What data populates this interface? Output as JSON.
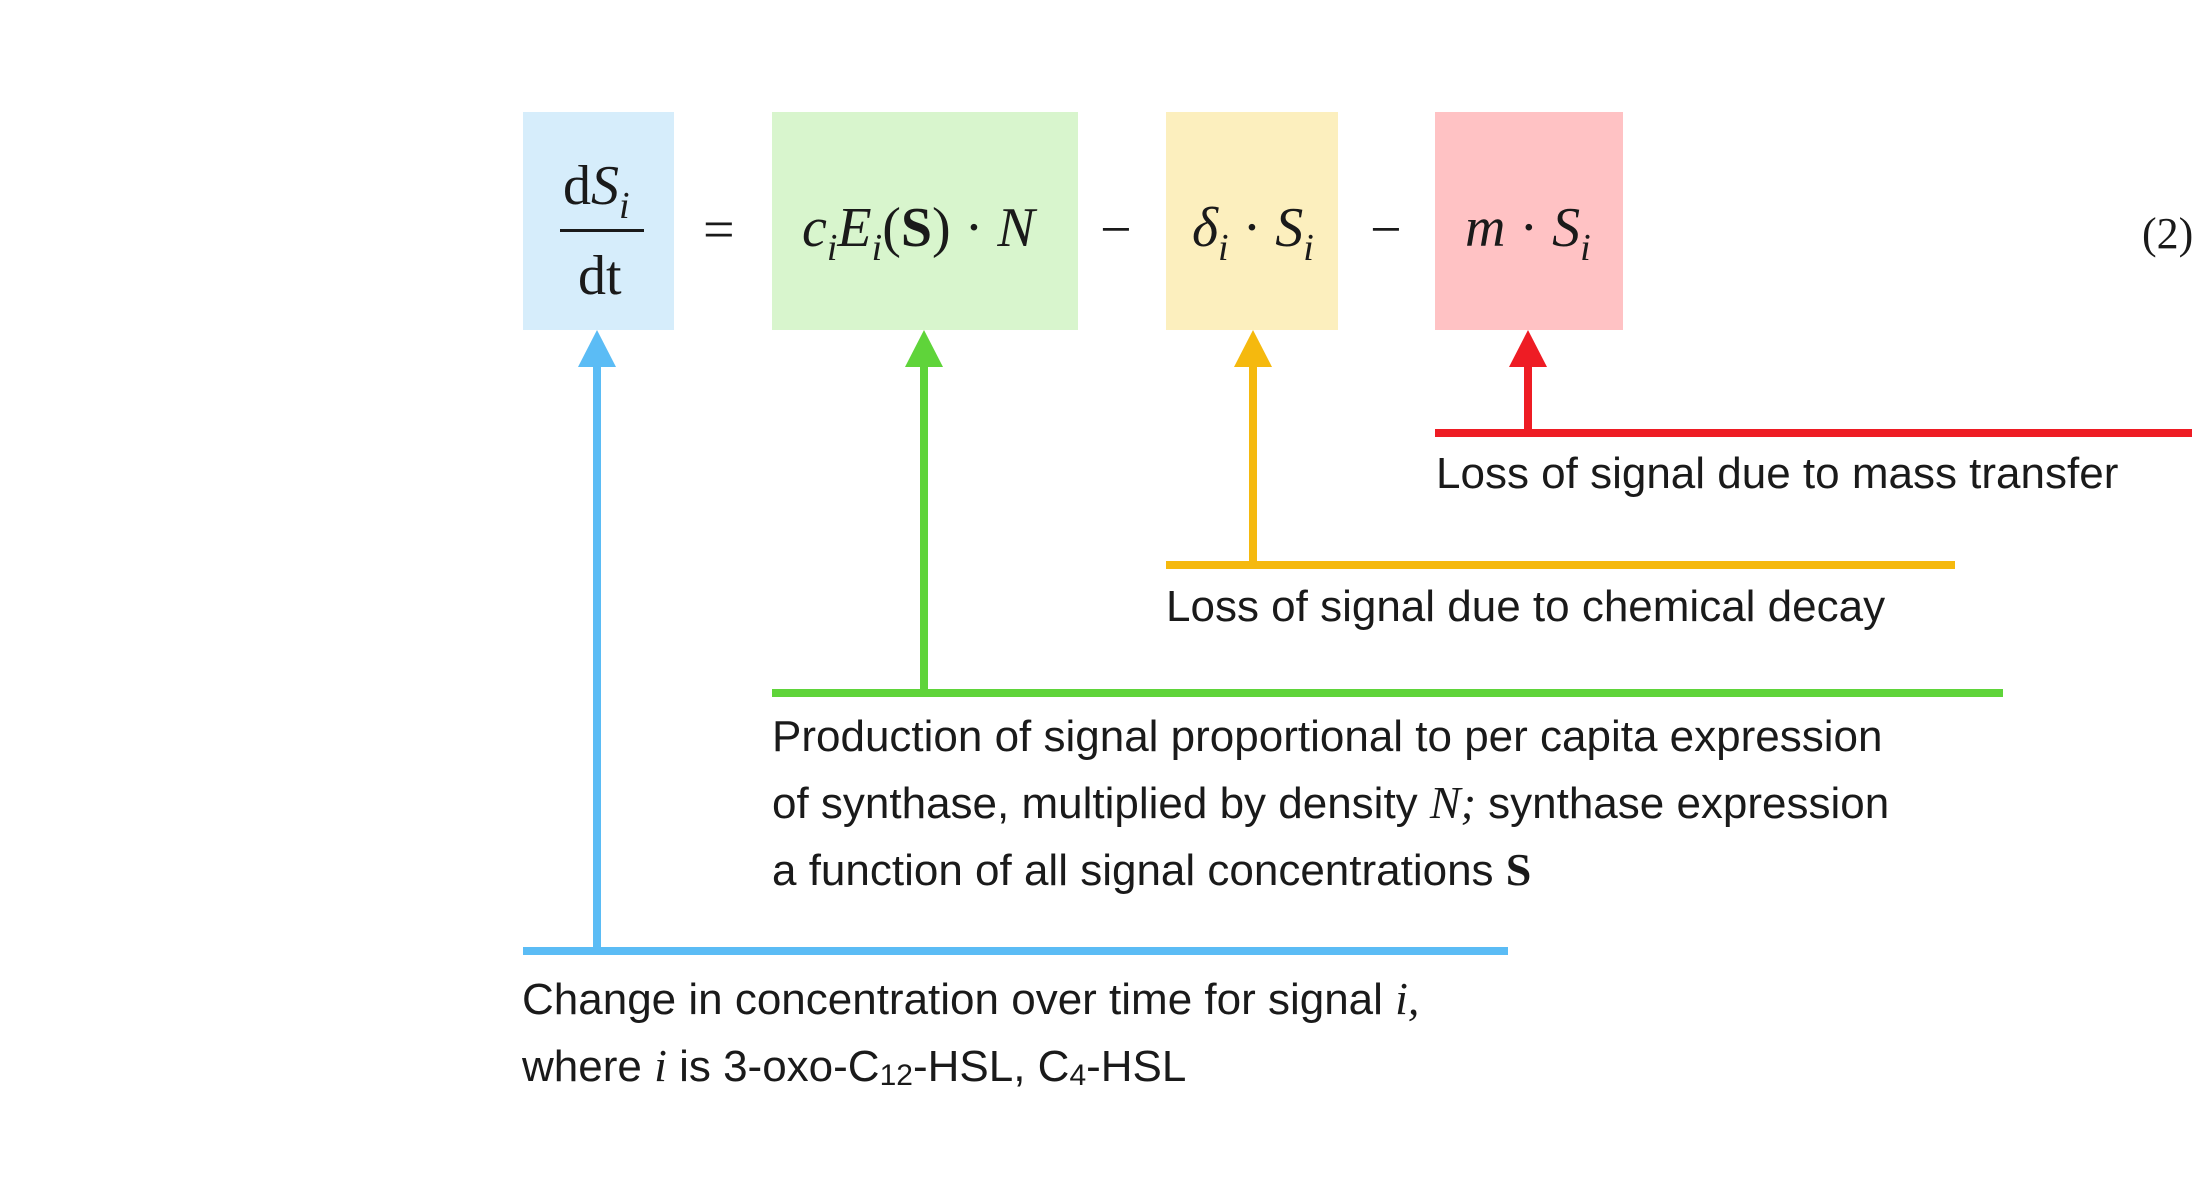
{
  "colors": {
    "blue": "#5bbcf5",
    "blue_bg": "#d6edfb",
    "green": "#5fd43a",
    "green_bg": "#d8f5cd",
    "yellow": "#f5b90e",
    "yellow_bg": "#fcefbe",
    "red": "#ee1c24",
    "red_bg": "#ffc2c4"
  },
  "equation": {
    "lhs_numerator_d": "d",
    "lhs_numerator_var": "S",
    "lhs_numerator_sub": "i",
    "lhs_denominator": "dt",
    "equals": "=",
    "minus": "−",
    "production": {
      "c": "c",
      "c_sub": "i",
      "E": "E",
      "E_sub": "i",
      "open": "(",
      "S": "S",
      "close": ")",
      "dot": "·",
      "N": "N"
    },
    "decay": {
      "delta": "δ",
      "delta_sub": "i",
      "dot": "·",
      "S": "S",
      "S_sub": "i"
    },
    "mass": {
      "m": "m",
      "dot": "·",
      "S": "S",
      "S_sub": "i"
    },
    "number": "(2)"
  },
  "annotations": {
    "mass_transfer": "Loss of signal due to mass transfer",
    "decay": "Loss of signal due to chemical decay",
    "production": {
      "line1": "Production of signal proportional to per capita expression",
      "line2_a": "of synthase, multiplied by density ",
      "line2_var": "N;",
      "line2_b": " synthase expression",
      "line3_a": "a function of all signal concentrations ",
      "line3_var": "S"
    },
    "change": {
      "line1_a": "Change in concentration over time for signal ",
      "line1_var": "i,",
      "line2_a": "where ",
      "line2_var": "i",
      "line2_b": " is 3-oxo-C",
      "line2_sub1": "12",
      "line2_c": "-HSL, C",
      "line2_sub2": "4",
      "line2_d": "-HSL"
    }
  }
}
